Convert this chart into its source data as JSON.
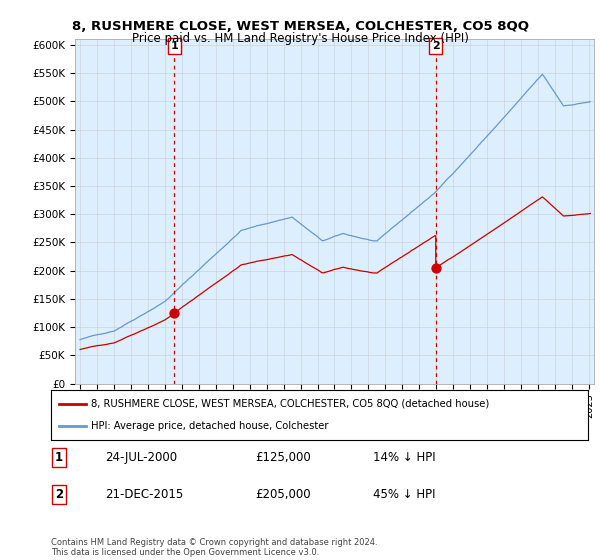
{
  "title": "8, RUSHMERE CLOSE, WEST MERSEA, COLCHESTER, CO5 8QQ",
  "subtitle": "Price paid vs. HM Land Registry's House Price Index (HPI)",
  "ylabel_ticks": [
    "£0",
    "£50K",
    "£100K",
    "£150K",
    "£200K",
    "£250K",
    "£300K",
    "£350K",
    "£400K",
    "£450K",
    "£500K",
    "£550K",
    "£600K"
  ],
  "ytick_values": [
    0,
    50000,
    100000,
    150000,
    200000,
    250000,
    300000,
    350000,
    400000,
    450000,
    500000,
    550000,
    600000
  ],
  "xlim_start": 1994.7,
  "xlim_end": 2025.3,
  "ylim_min": 0,
  "ylim_max": 610000,
  "transaction1_date": 2000.56,
  "transaction1_price": 125000,
  "transaction1_label": "1",
  "transaction2_date": 2015.97,
  "transaction2_price": 205000,
  "transaction2_label": "2",
  "legend_line1": "8, RUSHMERE CLOSE, WEST MERSEA, COLCHESTER, CO5 8QQ (detached house)",
  "legend_line2": "HPI: Average price, detached house, Colchester",
  "table_row1_num": "1",
  "table_row1_date": "24-JUL-2000",
  "table_row1_price": "£125,000",
  "table_row1_hpi": "14% ↓ HPI",
  "table_row2_num": "2",
  "table_row2_date": "21-DEC-2015",
  "table_row2_price": "£205,000",
  "table_row2_hpi": "45% ↓ HPI",
  "footer": "Contains HM Land Registry data © Crown copyright and database right 2024.\nThis data is licensed under the Open Government Licence v3.0.",
  "red_line_color": "#cc0000",
  "blue_line_color": "#6699cc",
  "blue_fill_color": "#ddeeff",
  "vline_color": "#cc0000",
  "background_color": "#ffffff",
  "grid_color": "#cccccc"
}
